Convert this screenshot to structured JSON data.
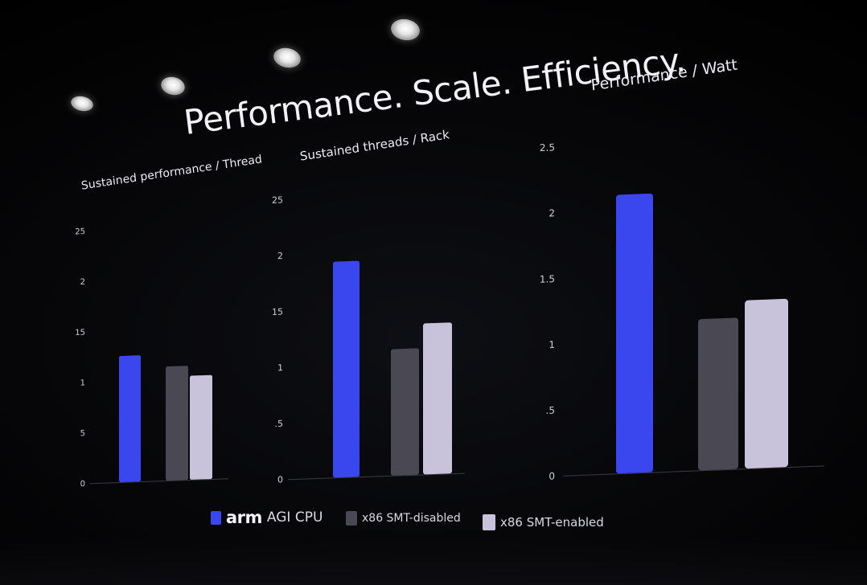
{
  "title": "Performance. Scale. Efficiency.",
  "colors": {
    "arm_agi_cpu": "#3a46ee",
    "x86_smt_disabled": "#4a4852",
    "x86_smt_enabled": "#c8c3da",
    "axis": "#3a3a44",
    "tick_text": "#cfcfd8",
    "background": "#000000"
  },
  "legend": {
    "arm_logo": "arm",
    "arm_label": "AGI CPU",
    "x86_disabled_label": "x86 SMT-disabled",
    "x86_enabled_label": "x86 SMT-enabled"
  },
  "chart_data": [
    {
      "type": "bar",
      "title": "Sustained performance / Thread",
      "categories": [
        "arm AGI CPU",
        "x86 SMT-disabled",
        "x86 SMT-enabled"
      ],
      "values": [
        1.25,
        1.13,
        1.03
      ],
      "tick_labels": [
        "0",
        "5",
        "1",
        "15",
        "2",
        "25"
      ],
      "ylim": [
        0,
        2.5
      ],
      "grid": false
    },
    {
      "type": "bar",
      "title": "Sustained threads / Rack",
      "categories": [
        "arm AGI CPU",
        "x86 SMT-disabled",
        "x86 SMT-enabled"
      ],
      "values": [
        1.93,
        1.13,
        1.35
      ],
      "tick_labels": [
        "0",
        ".5",
        "1",
        "15",
        "2",
        "25"
      ],
      "ylim": [
        0,
        2.5
      ],
      "grid": false
    },
    {
      "type": "bar",
      "title": "Performance / Watt",
      "categories": [
        "arm AGI CPU",
        "x86 SMT-disabled",
        "x86 SMT-enabled"
      ],
      "values": [
        2.12,
        1.15,
        1.28
      ],
      "tick_labels": [
        "0",
        ".5",
        "1",
        "1.5",
        "2",
        "2.5"
      ],
      "ylim": [
        0,
        2.5
      ],
      "grid": false
    }
  ]
}
